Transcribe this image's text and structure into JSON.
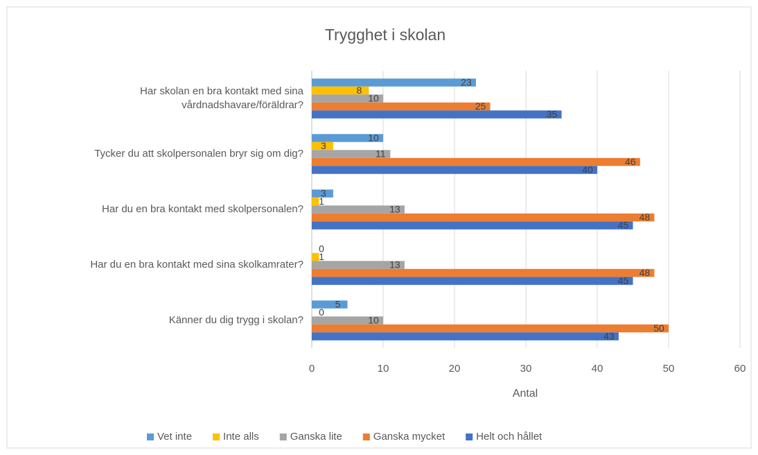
{
  "chart_data": {
    "type": "barh",
    "title": "Trygghet i skolan",
    "xlabel": "Antal",
    "categories": [
      "Har skolan en bra kontakt med sina vårdnadshavare/föräldrar?",
      "Tycker du att skolpersonalen bryr sig om dig?",
      "Har du en bra kontakt med skolpersonalen?",
      "Har du en bra kontakt med sina skolkamrater?",
      "Känner du dig trygg i skolan?"
    ],
    "series": [
      {
        "name": "Vet inte",
        "color": "#5b9bd5",
        "values": [
          23,
          10,
          3,
          0,
          5
        ]
      },
      {
        "name": "Inte alls",
        "color": "#ffc000",
        "values": [
          8,
          3,
          1,
          1,
          0
        ]
      },
      {
        "name": "Ganska lite",
        "color": "#a5a5a5",
        "values": [
          10,
          11,
          13,
          13,
          10
        ]
      },
      {
        "name": "Ganska mycket",
        "color": "#ed7d31",
        "values": [
          25,
          46,
          48,
          48,
          50
        ]
      },
      {
        "name": "Helt och hållet",
        "color": "#4472c4",
        "values": [
          35,
          40,
          45,
          45,
          43
        ]
      }
    ],
    "xlim": [
      0,
      60
    ],
    "xticks": [
      0,
      10,
      20,
      30,
      40,
      50,
      60
    ],
    "grid": true,
    "legend": "bottom"
  }
}
